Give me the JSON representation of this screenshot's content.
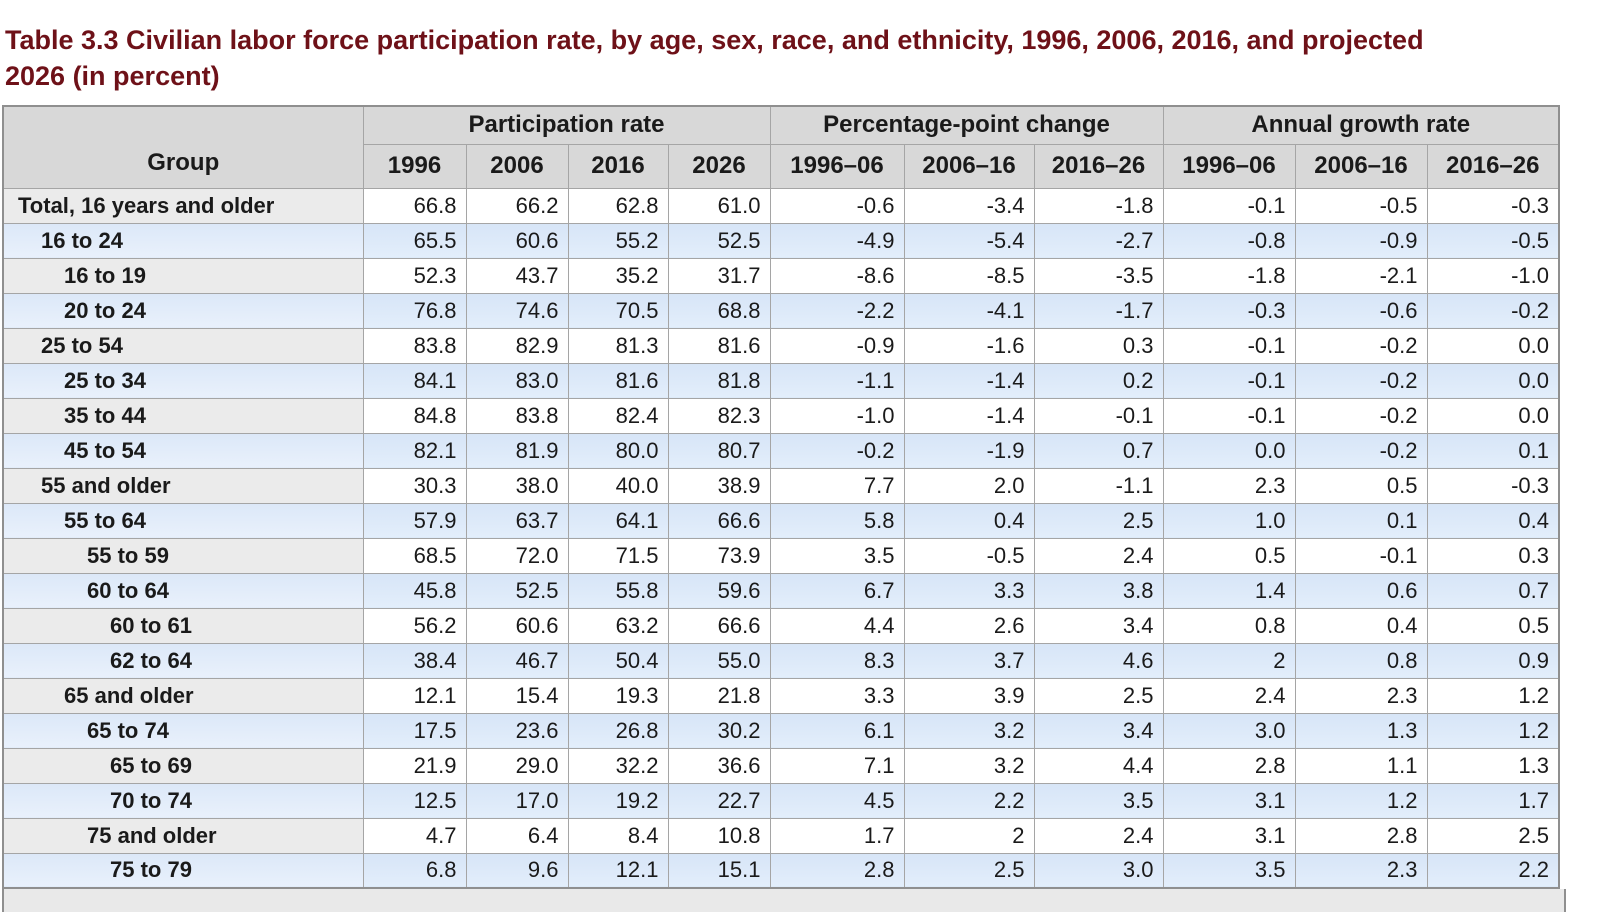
{
  "title": {
    "full": "Table 3.3 Civilian labor force participation rate, by age, sex, race, and ethnicity, 1996, 2006, 2016, and projected 2026 (in percent)",
    "line1": "Table 3.3 Civilian labor force participation rate, by age, sex, race, and ethnicity, 1996, 2006, 2016, and projected",
    "line2": "2026 (in percent)"
  },
  "table": {
    "header": {
      "group_label": "Group",
      "spans": [
        {
          "label": "Participation rate",
          "colspan": 4
        },
        {
          "label": "Percentage-point change",
          "colspan": 3
        },
        {
          "label": "Annual growth rate",
          "colspan": 3
        }
      ],
      "sub_labels": [
        "1996",
        "2006",
        "2016",
        "2026",
        "1996–06",
        "2006–16",
        "2016–26",
        "1996–06",
        "2006–16",
        "2016–26"
      ]
    },
    "rows": [
      {
        "group": "Total, 16 years and older",
        "indent": 0,
        "values": [
          "66.8",
          "66.2",
          "62.8",
          "61.0",
          "-0.6",
          "-3.4",
          "-1.8",
          "-0.1",
          "-0.5",
          "-0.3"
        ]
      },
      {
        "group": "16 to 24",
        "indent": 1,
        "values": [
          "65.5",
          "60.6",
          "55.2",
          "52.5",
          "-4.9",
          "-5.4",
          "-2.7",
          "-0.8",
          "-0.9",
          "-0.5"
        ]
      },
      {
        "group": "16 to 19",
        "indent": 2,
        "values": [
          "52.3",
          "43.7",
          "35.2",
          "31.7",
          "-8.6",
          "-8.5",
          "-3.5",
          "-1.8",
          "-2.1",
          "-1.0"
        ]
      },
      {
        "group": "20 to 24",
        "indent": 2,
        "values": [
          "76.8",
          "74.6",
          "70.5",
          "68.8",
          "-2.2",
          "-4.1",
          "-1.7",
          "-0.3",
          "-0.6",
          "-0.2"
        ]
      },
      {
        "group": "25 to 54",
        "indent": 1,
        "values": [
          "83.8",
          "82.9",
          "81.3",
          "81.6",
          "-0.9",
          "-1.6",
          "0.3",
          "-0.1",
          "-0.2",
          "0.0"
        ]
      },
      {
        "group": "25 to 34",
        "indent": 2,
        "values": [
          "84.1",
          "83.0",
          "81.6",
          "81.8",
          "-1.1",
          "-1.4",
          "0.2",
          "-0.1",
          "-0.2",
          "0.0"
        ]
      },
      {
        "group": "35 to 44",
        "indent": 2,
        "values": [
          "84.8",
          "83.8",
          "82.4",
          "82.3",
          "-1.0",
          "-1.4",
          "-0.1",
          "-0.1",
          "-0.2",
          "0.0"
        ]
      },
      {
        "group": "45 to 54",
        "indent": 2,
        "values": [
          "82.1",
          "81.9",
          "80.0",
          "80.7",
          "-0.2",
          "-1.9",
          "0.7",
          "0.0",
          "-0.2",
          "0.1"
        ]
      },
      {
        "group": "55 and older",
        "indent": 1,
        "values": [
          "30.3",
          "38.0",
          "40.0",
          "38.9",
          "7.7",
          "2.0",
          "-1.1",
          "2.3",
          "0.5",
          "-0.3"
        ]
      },
      {
        "group": "55 to 64",
        "indent": 2,
        "values": [
          "57.9",
          "63.7",
          "64.1",
          "66.6",
          "5.8",
          "0.4",
          "2.5",
          "1.0",
          "0.1",
          "0.4"
        ]
      },
      {
        "group": "55 to 59",
        "indent": 3,
        "values": [
          "68.5",
          "72.0",
          "71.5",
          "73.9",
          "3.5",
          "-0.5",
          "2.4",
          "0.5",
          "-0.1",
          "0.3"
        ]
      },
      {
        "group": "60 to 64",
        "indent": 3,
        "values": [
          "45.8",
          "52.5",
          "55.8",
          "59.6",
          "6.7",
          "3.3",
          "3.8",
          "1.4",
          "0.6",
          "0.7"
        ]
      },
      {
        "group": "60 to 61",
        "indent": 4,
        "values": [
          "56.2",
          "60.6",
          "63.2",
          "66.6",
          "4.4",
          "2.6",
          "3.4",
          "0.8",
          "0.4",
          "0.5"
        ]
      },
      {
        "group": "62 to 64",
        "indent": 4,
        "values": [
          "38.4",
          "46.7",
          "50.4",
          "55.0",
          "8.3",
          "3.7",
          "4.6",
          "2",
          "0.8",
          "0.9"
        ]
      },
      {
        "group": "65 and older",
        "indent": 2,
        "values": [
          "12.1",
          "15.4",
          "19.3",
          "21.8",
          "3.3",
          "3.9",
          "2.5",
          "2.4",
          "2.3",
          "1.2"
        ]
      },
      {
        "group": "65 to 74",
        "indent": 3,
        "values": [
          "17.5",
          "23.6",
          "26.8",
          "30.2",
          "6.1",
          "3.2",
          "3.4",
          "3.0",
          "1.3",
          "1.2"
        ]
      },
      {
        "group": "65 to 69",
        "indent": 4,
        "values": [
          "21.9",
          "29.0",
          "32.2",
          "36.6",
          "7.1",
          "3.2",
          "4.4",
          "2.8",
          "1.1",
          "1.3"
        ]
      },
      {
        "group": "70 to 74",
        "indent": 4,
        "values": [
          "12.5",
          "17.0",
          "19.2",
          "22.7",
          "4.5",
          "2.2",
          "3.5",
          "3.1",
          "1.2",
          "1.7"
        ]
      },
      {
        "group": "75 and older",
        "indent": 3,
        "values": [
          "4.7",
          "6.4",
          "8.4",
          "10.8",
          "1.7",
          "2",
          "2.4",
          "3.1",
          "2.8",
          "2.5"
        ]
      },
      {
        "group": "75 to 79",
        "indent": 4,
        "values": [
          "6.8",
          "9.6",
          "12.1",
          "15.1",
          "2.8",
          "2.5",
          "3.0",
          "3.5",
          "2.3",
          "2.2"
        ]
      }
    ]
  },
  "colors": {
    "title_maroon": "#6e1118",
    "header_grey": "#d8d8d8",
    "row_label_grey": "#ebebeb",
    "row_blue_label": "#e3edfb",
    "row_blue_data": "#dbe8f8",
    "row_white_data": "#ffffff",
    "border_inner": "#a5a5a5",
    "border_outer": "#8f8f8f",
    "partial_row_grey": "#e9e9e9",
    "text": "#1a1a1a"
  }
}
